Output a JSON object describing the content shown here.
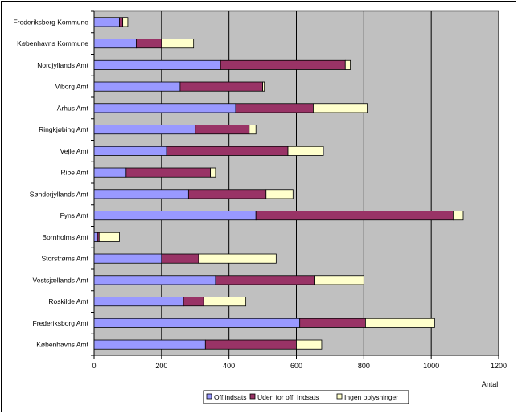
{
  "chart_data": {
    "type": "bar",
    "orientation": "horizontal",
    "stacked": true,
    "xlabel": "Antal",
    "xlim": [
      0,
      1200
    ],
    "xticks": [
      0,
      200,
      400,
      600,
      800,
      1000,
      1200
    ],
    "grid": true,
    "legend_position": "bottom-right",
    "categories": [
      "Frederiksberg Kommune",
      "Københavns Kommune",
      "Nordjyllands Amt",
      "Viborg Amt",
      "Århus Amt",
      "Ringkjøbing Amt",
      "Vejle Amt",
      "Ribe Amt",
      "Sønderjyllands Amt",
      "Fyns Amt",
      "Bornholms Amt",
      "Storstrøms Amt",
      "Vestsjællands Amt",
      "Roskilde Amt",
      "Frederiksborg Amt",
      "Københavns Amt"
    ],
    "series": [
      {
        "name": "Off.indsats",
        "color": "#9999ff",
        "values": [
          75,
          125,
          375,
          255,
          420,
          300,
          215,
          95,
          280,
          480,
          10,
          200,
          360,
          265,
          610,
          330
        ]
      },
      {
        "name": "Uden for off. Indsats",
        "color": "#993366",
        "values": [
          10,
          75,
          370,
          245,
          230,
          160,
          360,
          250,
          230,
          585,
          5,
          110,
          295,
          60,
          195,
          270
        ]
      },
      {
        "name": "Ingen oplysninger",
        "color": "#ffffcc",
        "values": [
          15,
          95,
          15,
          5,
          160,
          20,
          105,
          15,
          80,
          30,
          60,
          230,
          145,
          125,
          205,
          75
        ]
      }
    ]
  }
}
